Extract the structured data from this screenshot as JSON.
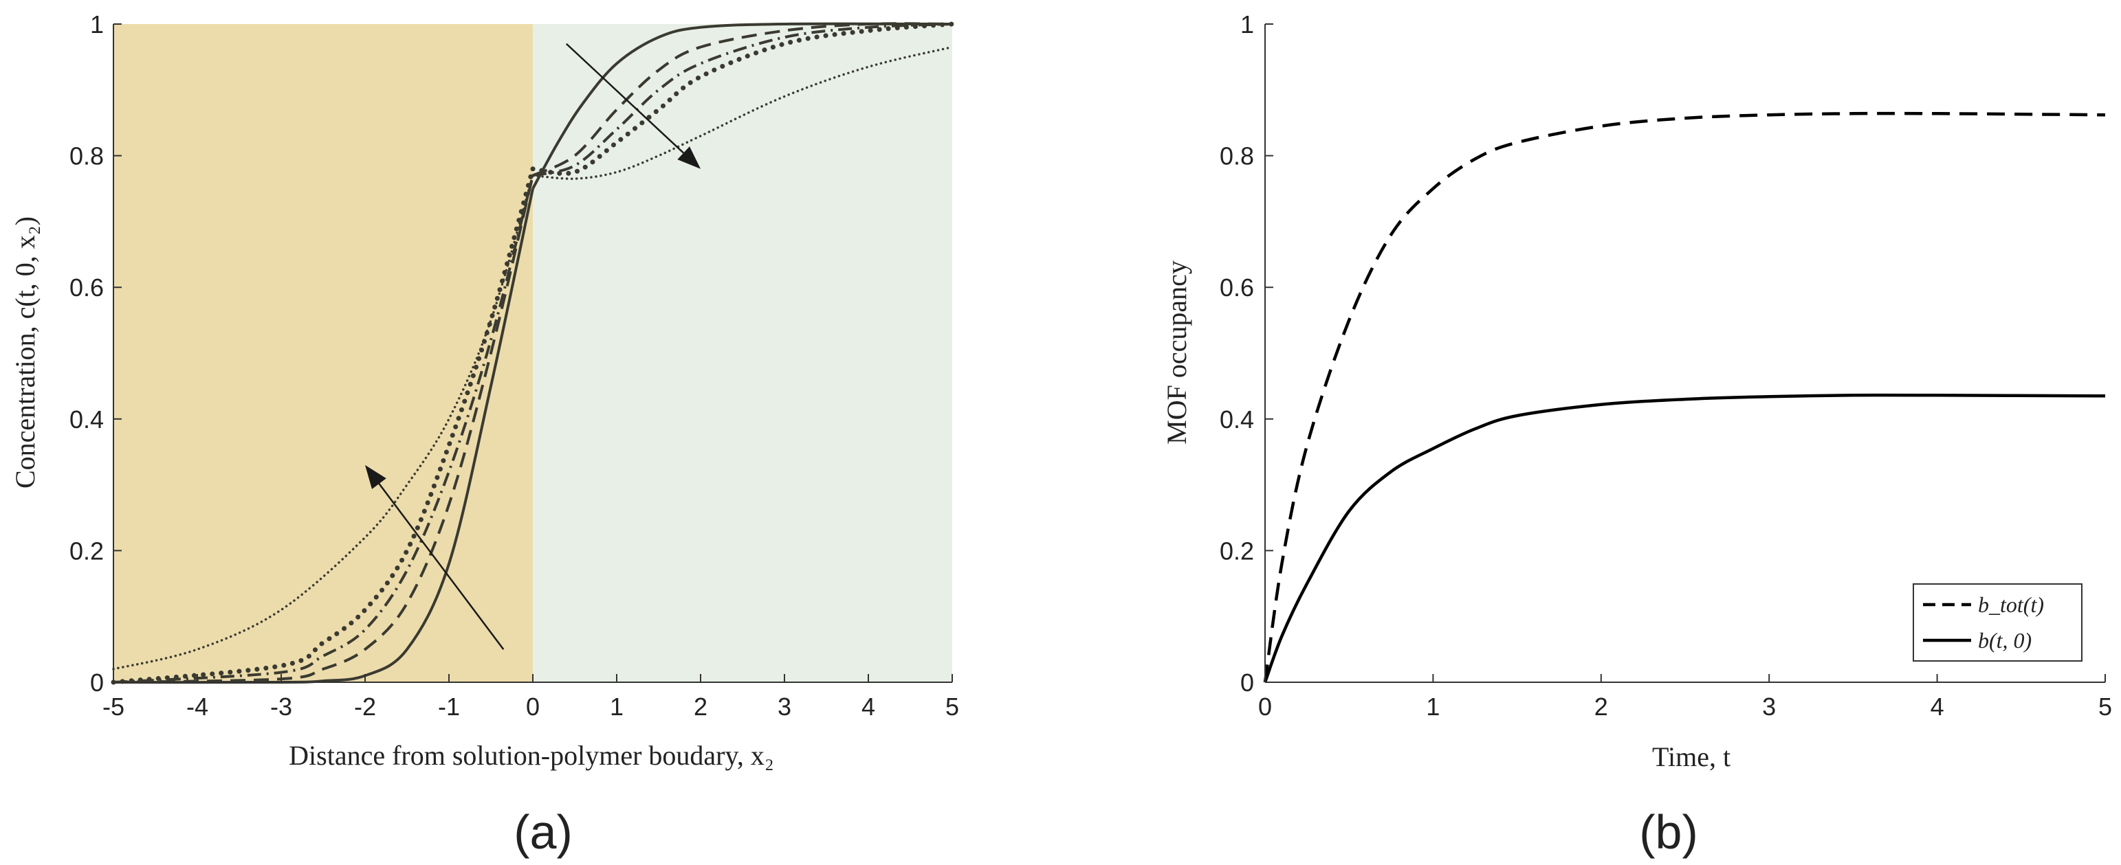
{
  "chart_data": [
    {
      "panel": "(a)",
      "type": "line",
      "xlabel": "Distance from solution-polymer boudary, x₂",
      "ylabel": "Concentration, c(t, 0, x₂)",
      "xlim": [
        -5,
        5
      ],
      "ylim": [
        0,
        1
      ],
      "xticks": [
        "-5",
        "-4",
        "-3",
        "-2",
        "-1",
        "0",
        "1",
        "2",
        "3",
        "4",
        "5"
      ],
      "yticks": [
        "0",
        "0.2",
        "0.4",
        "0.6",
        "0.8",
        "1"
      ],
      "regions": [
        {
          "x": [
            -5,
            0
          ],
          "color": "#ecdcac"
        },
        {
          "x": [
            0,
            5
          ],
          "color": "#e8efe6"
        }
      ],
      "arrows": [
        {
          "from": [
            -0.35,
            0.05
          ],
          "to": [
            -2.0,
            0.33
          ]
        },
        {
          "from": [
            0.4,
            0.97
          ],
          "to": [
            2.0,
            0.78
          ]
        }
      ],
      "series": [
        {
          "style": "solid",
          "left": [
            [
              -5,
              0
            ],
            [
              -3,
              0
            ],
            [
              -2.5,
              0.002
            ],
            [
              -2,
              0.01
            ],
            [
              -1.5,
              0.05
            ],
            [
              -1,
              0.18
            ],
            [
              -0.5,
              0.45
            ],
            [
              0,
              0.75
            ]
          ],
          "right": [
            [
              0,
              0.75
            ],
            [
              0.3,
              0.82
            ],
            [
              0.6,
              0.88
            ],
            [
              1,
              0.94
            ],
            [
              1.5,
              0.98
            ],
            [
              2,
              0.995
            ],
            [
              3,
              1.0
            ],
            [
              5,
              1.0
            ]
          ]
        },
        {
          "style": "dashed",
          "left": [
            [
              -5,
              0
            ],
            [
              -3,
              0.005
            ],
            [
              -2.5,
              0.02
            ],
            [
              -2,
              0.05
            ],
            [
              -1.5,
              0.12
            ],
            [
              -1,
              0.27
            ],
            [
              -0.5,
              0.5
            ],
            [
              0,
              0.77
            ]
          ],
          "right": [
            [
              0,
              0.77
            ],
            [
              0.5,
              0.8
            ],
            [
              1,
              0.87
            ],
            [
              1.5,
              0.93
            ],
            [
              2,
              0.965
            ],
            [
              3,
              0.99
            ],
            [
              4,
              1.0
            ],
            [
              5,
              1.0
            ]
          ]
        },
        {
          "style": "dashdot",
          "left": [
            [
              -5,
              0
            ],
            [
              -3,
              0.015
            ],
            [
              -2.5,
              0.04
            ],
            [
              -2,
              0.08
            ],
            [
              -1.5,
              0.17
            ],
            [
              -1,
              0.32
            ],
            [
              -0.5,
              0.52
            ],
            [
              0,
              0.77
            ]
          ],
          "right": [
            [
              0,
              0.77
            ],
            [
              0.5,
              0.785
            ],
            [
              1,
              0.84
            ],
            [
              1.5,
              0.9
            ],
            [
              2,
              0.94
            ],
            [
              3,
              0.98
            ],
            [
              4,
              0.995
            ],
            [
              5,
              1.0
            ]
          ]
        },
        {
          "style": "dotted-heavy",
          "left": [
            [
              -5,
              0
            ],
            [
              -3,
              0.025
            ],
            [
              -2.5,
              0.06
            ],
            [
              -2,
              0.11
            ],
            [
              -1.5,
              0.2
            ],
            [
              -1,
              0.36
            ],
            [
              -0.5,
              0.55
            ],
            [
              0,
              0.78
            ]
          ],
          "right": [
            [
              0,
              0.78
            ],
            [
              0.5,
              0.775
            ],
            [
              1,
              0.82
            ],
            [
              1.5,
              0.87
            ],
            [
              2,
              0.92
            ],
            [
              3,
              0.97
            ],
            [
              4,
              0.99
            ],
            [
              5,
              1.0
            ]
          ]
        },
        {
          "style": "dotted-light",
          "left": [
            [
              -5,
              0.02
            ],
            [
              -4,
              0.05
            ],
            [
              -3,
              0.11
            ],
            [
              -2,
              0.22
            ],
            [
              -1.5,
              0.3
            ],
            [
              -1,
              0.4
            ],
            [
              -0.5,
              0.55
            ],
            [
              0,
              0.77
            ]
          ],
          "right": [
            [
              0,
              0.77
            ],
            [
              0.5,
              0.765
            ],
            [
              1,
              0.775
            ],
            [
              1.5,
              0.8
            ],
            [
              2,
              0.83
            ],
            [
              3,
              0.89
            ],
            [
              4,
              0.935
            ],
            [
              5,
              0.965
            ]
          ]
        }
      ]
    },
    {
      "panel": "(b)",
      "type": "line",
      "xlabel": "Time, t",
      "ylabel": "MOF occupancy",
      "xlim": [
        0,
        5
      ],
      "ylim": [
        0,
        1
      ],
      "xticks": [
        "0",
        "1",
        "2",
        "3",
        "4",
        "5"
      ],
      "yticks": [
        "0",
        "0.2",
        "0.4",
        "0.6",
        "0.8",
        "1"
      ],
      "legend_position": "bottom-right",
      "series": [
        {
          "name": "b_tot(t)",
          "style": "dashed",
          "points": [
            [
              0,
              0
            ],
            [
              0.1,
              0.18
            ],
            [
              0.25,
              0.36
            ],
            [
              0.5,
              0.55
            ],
            [
              0.75,
              0.68
            ],
            [
              1,
              0.75
            ],
            [
              1.25,
              0.795
            ],
            [
              1.5,
              0.82
            ],
            [
              2,
              0.845
            ],
            [
              2.5,
              0.857
            ],
            [
              3,
              0.862
            ],
            [
              3.5,
              0.864
            ],
            [
              4,
              0.864
            ],
            [
              5,
              0.862
            ]
          ]
        },
        {
          "name": "b(t, 0)",
          "style": "solid",
          "points": [
            [
              0,
              0
            ],
            [
              0.1,
              0.07
            ],
            [
              0.25,
              0.15
            ],
            [
              0.5,
              0.26
            ],
            [
              0.75,
              0.32
            ],
            [
              1,
              0.355
            ],
            [
              1.25,
              0.385
            ],
            [
              1.5,
              0.405
            ],
            [
              2,
              0.422
            ],
            [
              2.5,
              0.43
            ],
            [
              3,
              0.434
            ],
            [
              3.5,
              0.436
            ],
            [
              4,
              0.436
            ],
            [
              5,
              0.435
            ]
          ]
        }
      ]
    }
  ]
}
